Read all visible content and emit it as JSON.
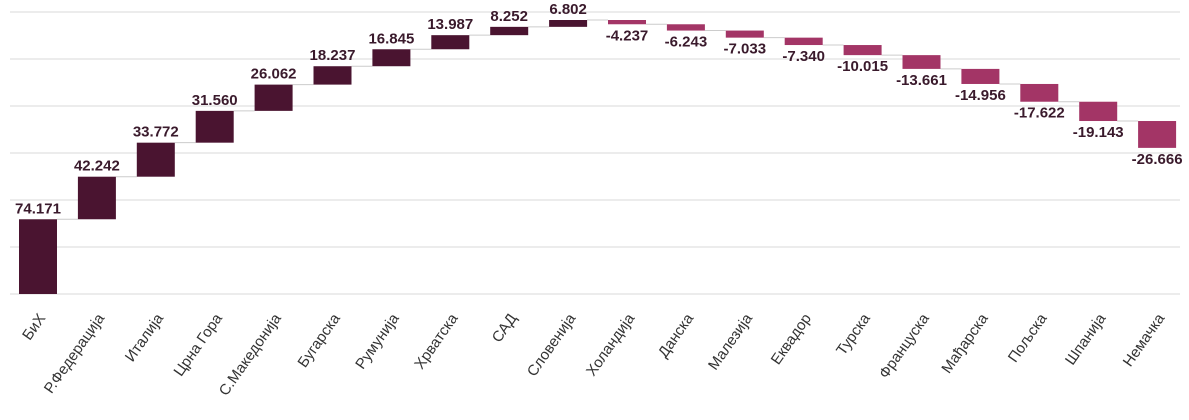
{
  "chart_data": {
    "type": "bar",
    "subtype": "waterfall",
    "categories": [
      "БиХ",
      "Р.Федерација",
      "Италија",
      "Црна Гора",
      "С.Македонија",
      "Бугарска",
      "Румунија",
      "Хрватска",
      "САД",
      "Словенија",
      "Холандија",
      "Данска",
      "Малезија",
      "Еквадор",
      "Турска",
      "Француска",
      "Мађарска",
      "Пољска",
      "Шпанија",
      "Немачка"
    ],
    "values": [
      74171,
      42242,
      33772,
      31560,
      26062,
      18237,
      16845,
      13987,
      8252,
      6802,
      -4237,
      -6243,
      -7033,
      -7340,
      -10015,
      -13661,
      -14956,
      -17622,
      -19143,
      -26666
    ],
    "labels": [
      "74.171",
      "42.242",
      "33.772",
      "31.560",
      "26.062",
      "18.237",
      "16.845",
      "13.987",
      "8.252",
      "6.802",
      "-4.237",
      "-6.243",
      "-7.033",
      "-7.340",
      "-10.015",
      "-13.661",
      "-14.956",
      "-17.622",
      "-19.143",
      "-26.666"
    ],
    "colors": {
      "increase": "#4a1430",
      "decrease": "#a33566"
    },
    "grid": true,
    "legend": "none"
  }
}
